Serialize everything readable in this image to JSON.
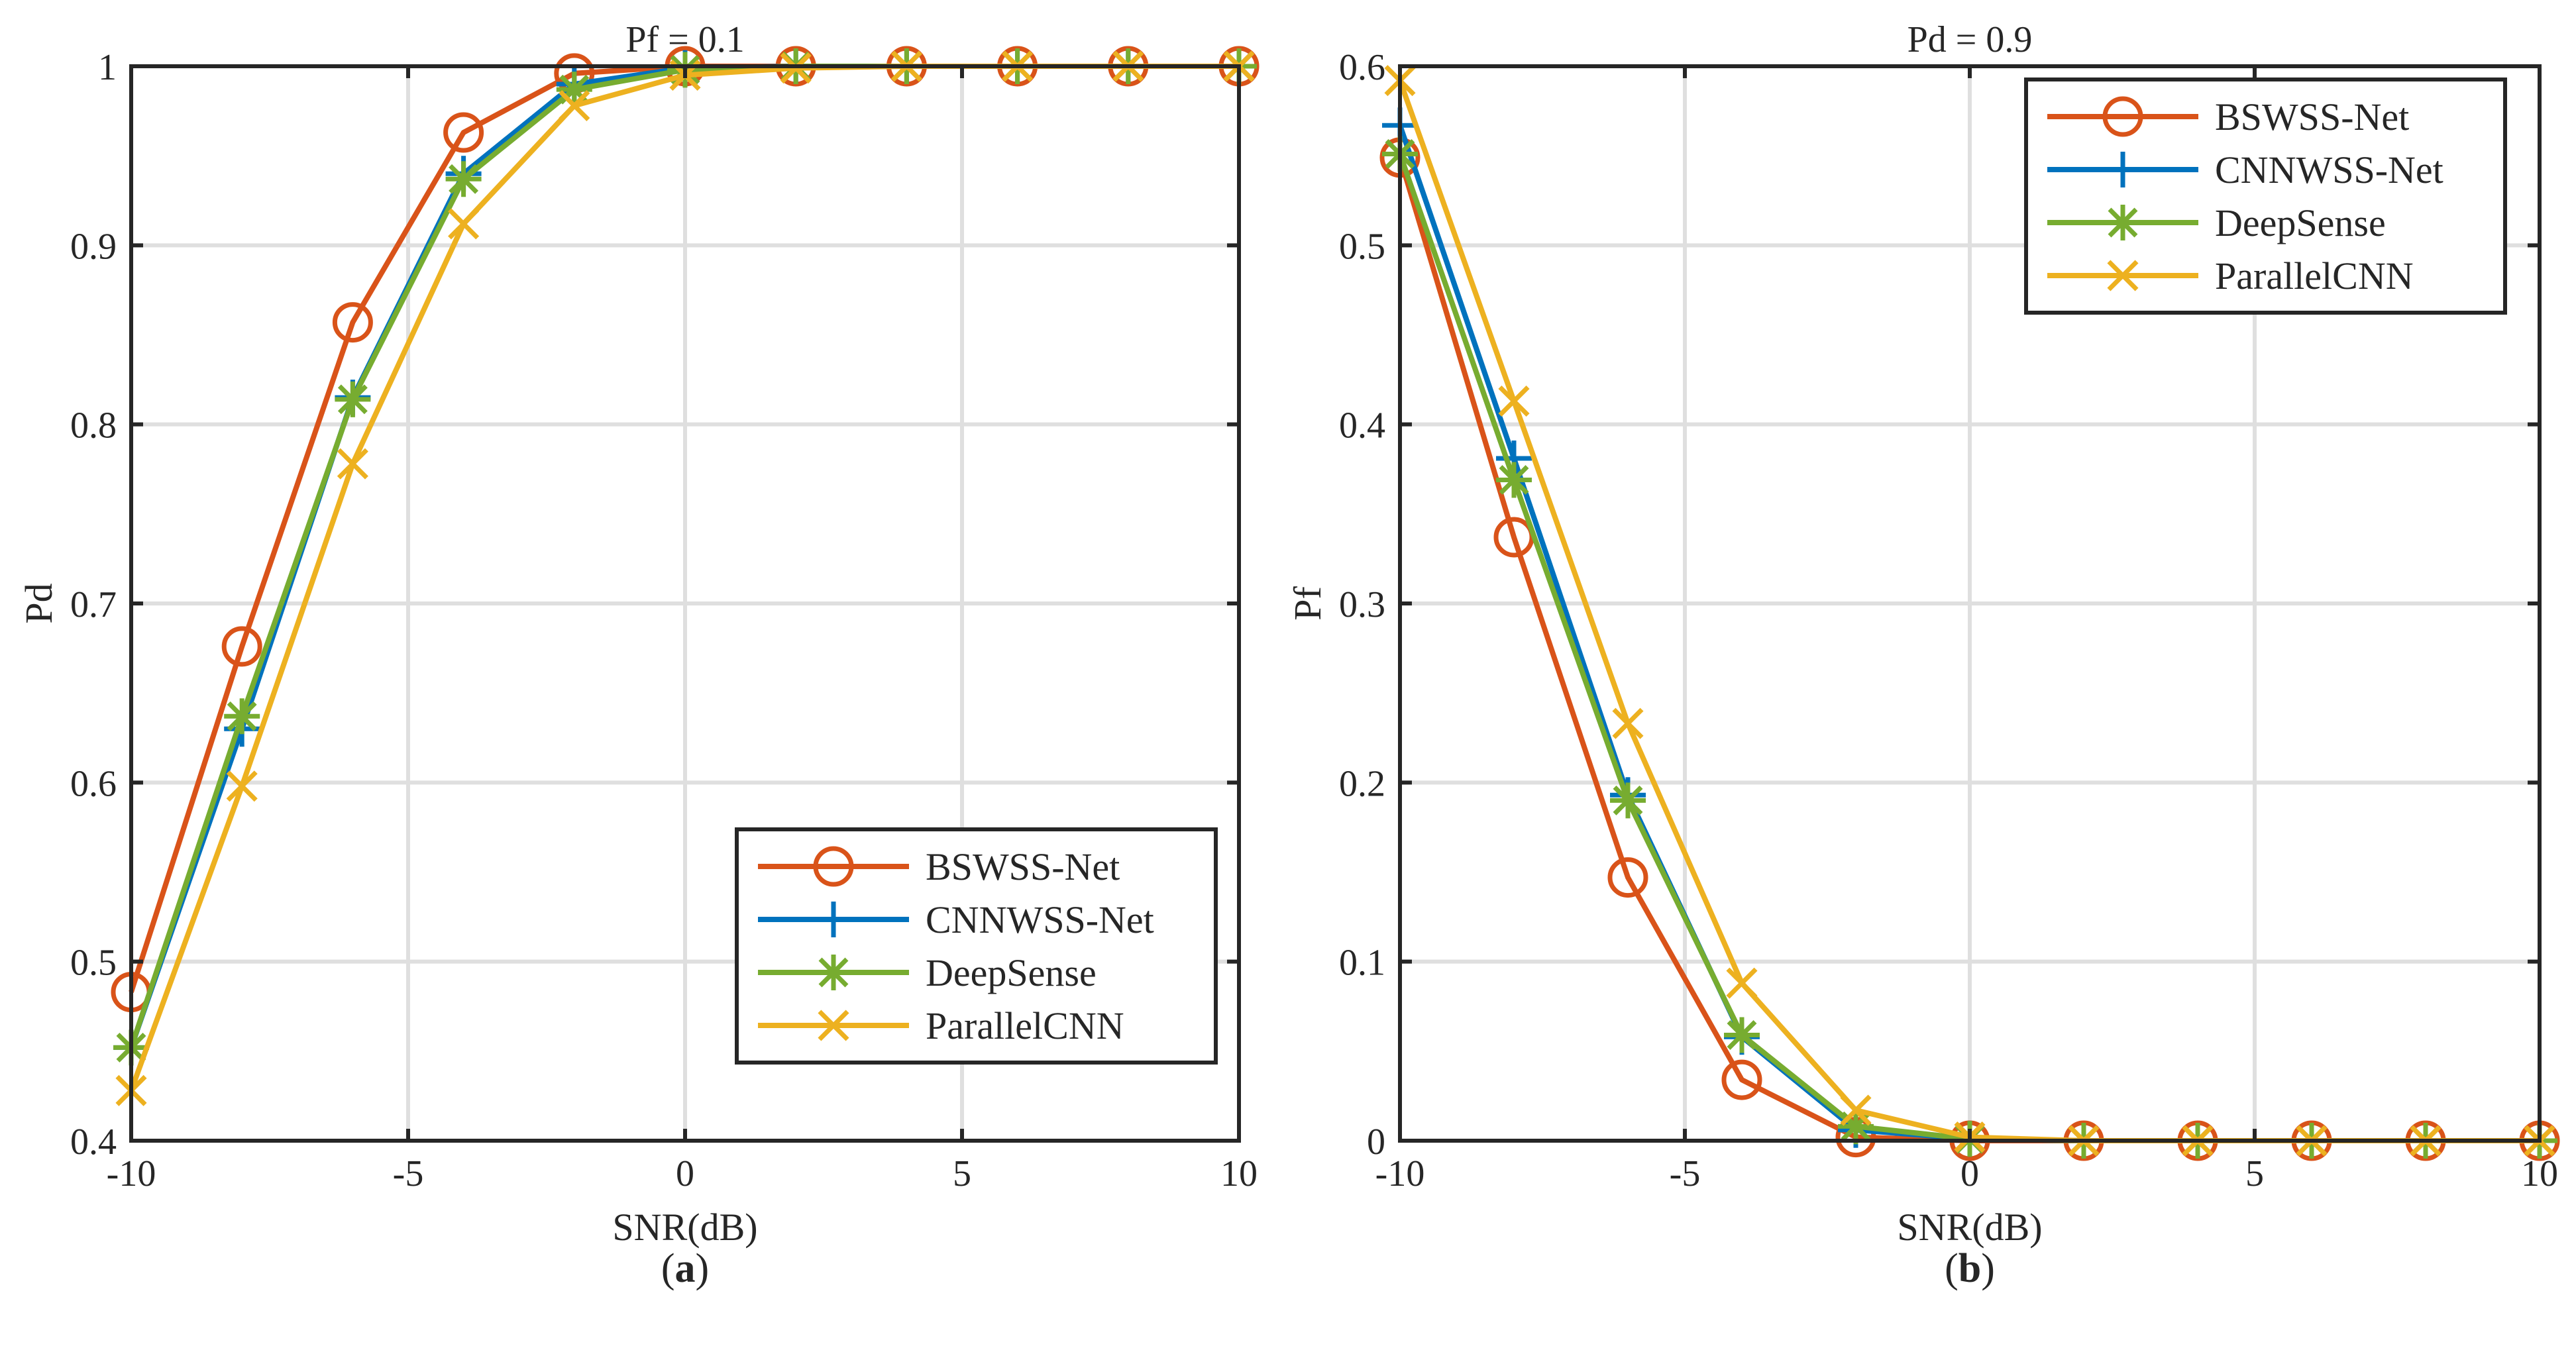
{
  "chart_data": [
    {
      "type": "line",
      "panel_label": "a",
      "title": "Pf = 0.1",
      "xlabel": "SNR(dB)",
      "ylabel": "Pd",
      "xlim": [
        -10,
        10
      ],
      "ylim": [
        0.4,
        1
      ],
      "xticks": [
        -10,
        -5,
        0,
        5,
        10
      ],
      "xtick_labels": [
        "-10",
        "-5",
        "0",
        "5",
        "10"
      ],
      "yticks": [
        0.4,
        0.5,
        0.6,
        0.7,
        0.8,
        0.9,
        1
      ],
      "ytick_labels": [
        "0.4",
        "0.5",
        "0.6",
        "0.7",
        "0.8",
        "0.9",
        "1"
      ],
      "grid": true,
      "legend_position": "bottom-right",
      "x": [
        -10,
        -8,
        -6,
        -4,
        -2,
        0,
        2,
        4,
        6,
        8,
        10
      ],
      "series": [
        {
          "name": "BSWSS-Net",
          "color": "#D95319",
          "marker": "circle",
          "values": [
            0.483,
            0.676,
            0.857,
            0.963,
            0.996,
            1.0,
            1.0,
            1.0,
            1.0,
            1.0,
            1.0
          ]
        },
        {
          "name": "CNNWSS-Net",
          "color": "#0072BD",
          "marker": "plus",
          "values": [
            0.452,
            0.63,
            0.815,
            0.94,
            0.99,
            0.999,
            1.0,
            1.0,
            1.0,
            1.0,
            1.0
          ]
        },
        {
          "name": "DeepSense",
          "color": "#77AC30",
          "marker": "asterisk",
          "values": [
            0.452,
            0.637,
            0.814,
            0.937,
            0.987,
            0.998,
            1.0,
            1.0,
            1.0,
            1.0,
            1.0
          ]
        },
        {
          "name": "ParallelCNN",
          "color": "#EDB120",
          "marker": "x",
          "values": [
            0.428,
            0.598,
            0.778,
            0.912,
            0.978,
            0.995,
            0.999,
            1.0,
            1.0,
            1.0,
            1.0
          ]
        }
      ]
    },
    {
      "type": "line",
      "panel_label": "b",
      "title": "Pd = 0.9",
      "xlabel": "SNR(dB)",
      "ylabel": "Pf",
      "xlim": [
        -10,
        10
      ],
      "ylim": [
        0,
        0.6
      ],
      "xticks": [
        -10,
        -5,
        0,
        5,
        10
      ],
      "xtick_labels": [
        "-10",
        "-5",
        "0",
        "5",
        "10"
      ],
      "yticks": [
        0,
        0.1,
        0.2,
        0.3,
        0.4,
        0.5,
        0.6
      ],
      "ytick_labels": [
        "0",
        "0.1",
        "0.2",
        "0.3",
        "0.4",
        "0.5",
        "0.6"
      ],
      "grid": true,
      "legend_position": "top-right",
      "x": [
        -10,
        -8,
        -6,
        -4,
        -2,
        0,
        2,
        4,
        6,
        8,
        10
      ],
      "series": [
        {
          "name": "BSWSS-Net",
          "color": "#D95319",
          "marker": "circle",
          "values": [
            0.549,
            0.337,
            0.147,
            0.034,
            0.002,
            0.0,
            0.0,
            0.0,
            0.0,
            0.0,
            0.0
          ]
        },
        {
          "name": "CNNWSS-Net",
          "color": "#0072BD",
          "marker": "plus",
          "values": [
            0.567,
            0.381,
            0.193,
            0.058,
            0.006,
            0.001,
            0.0,
            0.0,
            0.0,
            0.0,
            0.0
          ]
        },
        {
          "name": "DeepSense",
          "color": "#77AC30",
          "marker": "asterisk",
          "values": [
            0.551,
            0.369,
            0.19,
            0.059,
            0.008,
            0.001,
            0.0,
            0.0,
            0.0,
            0.0,
            0.0
          ]
        },
        {
          "name": "ParallelCNN",
          "color": "#EDB120",
          "marker": "x",
          "values": [
            0.592,
            0.413,
            0.233,
            0.088,
            0.017,
            0.002,
            0.0,
            0.0,
            0.0,
            0.0,
            0.0
          ]
        }
      ]
    }
  ]
}
